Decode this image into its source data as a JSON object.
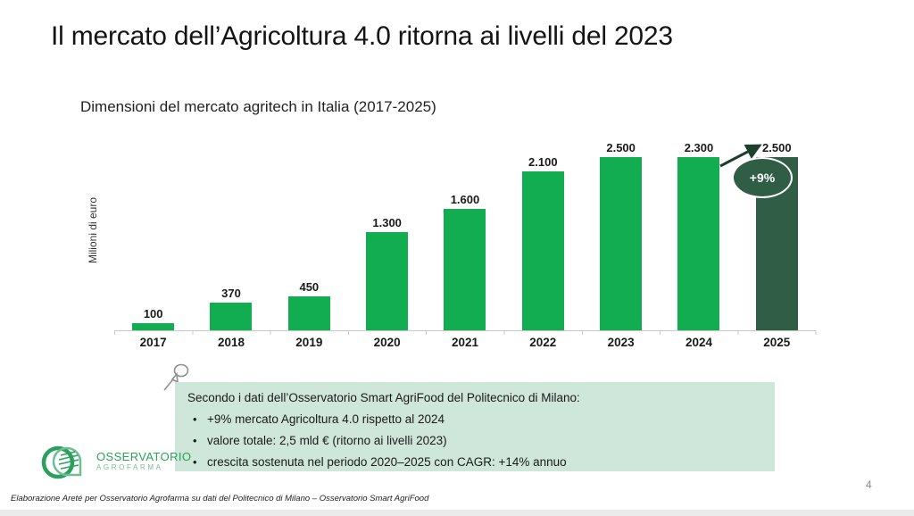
{
  "slide": {
    "title": "Il mercato dell’Agricoltura 4.0 ritorna ai livelli del 2023",
    "page_number": "4",
    "footer": "Elaborazione Areté per Osservatorio Agrofarma su dati del Politecnico di Milano – Osservatorio Smart AgriFood"
  },
  "chart_data": {
    "type": "bar",
    "title": "Dimensioni del mercato agritech in Italia (2017-2025)",
    "ylabel": "Milioni di euro",
    "xlabel": "",
    "categories": [
      "2017",
      "2018",
      "2019",
      "2020",
      "2021",
      "2022",
      "2023",
      "2024",
      "2025"
    ],
    "values": [
      100,
      370,
      450,
      1300,
      1600,
      2100,
      2500,
      2300,
      2500
    ],
    "value_labels": [
      "100",
      "370",
      "450",
      "1.300",
      "1.600",
      "2.100",
      "2.500",
      "2.300",
      "2.500"
    ],
    "ylim": [
      0,
      2500
    ],
    "grid": false,
    "legend": "none",
    "bar_color": "#12AD50",
    "highlight_index": 8,
    "highlight_color": "#305D45",
    "annotation": {
      "label": "+9%",
      "from_category": "2024",
      "to_category": "2025",
      "badge_fill": "#305D45",
      "badge_border": "#ffffff",
      "arrow_color": "#1C3F2E"
    }
  },
  "callout": {
    "intro": "Secondo i dati dell’Osservatorio Smart AgriFood del Politecnico di Milano:",
    "bullets": [
      "+9% mercato Agricoltura 4.0 rispetto al 2024",
      "valore totale: 2,5 mld € (ritorno ai livelli 2023)",
      "crescita sostenuta nel periodo 2020–2025 con CAGR: +14% annuo"
    ],
    "background": "#CFE6DA"
  },
  "logo": {
    "line1": "OSSERVATORIO",
    "line2": "AGROFARMA",
    "color_primary": "#2BA05C",
    "color_secondary": "#7BBD96"
  }
}
